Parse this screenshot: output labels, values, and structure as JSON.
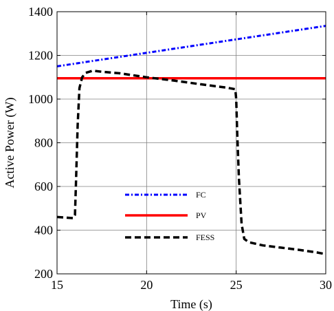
{
  "chart_data": {
    "type": "line",
    "xlabel": "Time (s)",
    "ylabel": "Active Power (W)",
    "xlim": [
      15,
      30
    ],
    "ylim": [
      200,
      1400
    ],
    "xticks": [
      15,
      20,
      25,
      30
    ],
    "yticks": [
      200,
      400,
      600,
      800,
      1000,
      1200,
      1400
    ],
    "grid": true,
    "legend_placement": "center-left",
    "series": [
      {
        "name": "FC",
        "color": "#0000ff",
        "style": "dashdot",
        "x": [
          15,
          30
        ],
        "y": [
          1150,
          1335
        ]
      },
      {
        "name": "PV",
        "color": "#ff0000",
        "style": "solid",
        "x": [
          15,
          30
        ],
        "y": [
          1095,
          1095
        ]
      },
      {
        "name": "FESS",
        "color": "#000000",
        "style": "dashed",
        "x": [
          15,
          15.4,
          15.9,
          16.0,
          16.05,
          16.15,
          16.25,
          16.4,
          16.6,
          17.0,
          17.5,
          18.5,
          20,
          21.5,
          23,
          24.5,
          24.95,
          25.0,
          25.05,
          25.15,
          25.3,
          25.45,
          25.7,
          26.5,
          27.5,
          28.5,
          29.5,
          30
        ],
        "y": [
          460,
          458,
          455,
          470,
          600,
          880,
          1050,
          1100,
          1120,
          1130,
          1125,
          1118,
          1100,
          1085,
          1068,
          1052,
          1045,
          1000,
          860,
          640,
          430,
          360,
          345,
          330,
          320,
          310,
          298,
          290
        ]
      }
    ]
  }
}
